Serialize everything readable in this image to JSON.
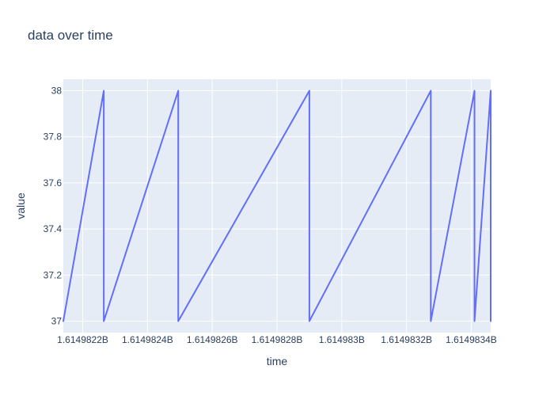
{
  "chart_data": {
    "type": "line",
    "title": "data over time",
    "xlabel": "time",
    "ylabel": "value",
    "xlim": [
      1614982140,
      1614983460
    ],
    "ylim": [
      36.95,
      38.05
    ],
    "grid": true,
    "legend": "none",
    "x_ticks": [
      {
        "value": 1614982200,
        "label": "1.6149822B"
      },
      {
        "value": 1614982400,
        "label": "1.6149824B"
      },
      {
        "value": 1614982600,
        "label": "1.6149826B"
      },
      {
        "value": 1614982800,
        "label": "1.6149828B"
      },
      {
        "value": 1614983000,
        "label": "1.614983B"
      },
      {
        "value": 1614983200,
        "label": "1.6149832B"
      },
      {
        "value": 1614983400,
        "label": "1.6149834B"
      }
    ],
    "y_ticks": [
      {
        "value": 37,
        "label": "37"
      },
      {
        "value": 37.2,
        "label": "37.2"
      },
      {
        "value": 37.4,
        "label": "37.4"
      },
      {
        "value": 37.6,
        "label": "37.6"
      },
      {
        "value": 37.8,
        "label": "37.8"
      },
      {
        "value": 38,
        "label": "38"
      }
    ],
    "series": [
      {
        "x": [
          1614982140,
          1614982265,
          1614982265,
          1614982495,
          1614982495,
          1614982900,
          1614982900,
          1614983275,
          1614983275,
          1614983410,
          1614983410,
          1614983460,
          1614983460
        ],
        "y": [
          37,
          38,
          37,
          38,
          37,
          38,
          37,
          38,
          37,
          38,
          37,
          38,
          37
        ]
      }
    ],
    "colors": {
      "line": "#636efa",
      "plot_bg": "#e5ecf6",
      "grid": "#ffffff",
      "text": "#2a3f5f"
    }
  }
}
